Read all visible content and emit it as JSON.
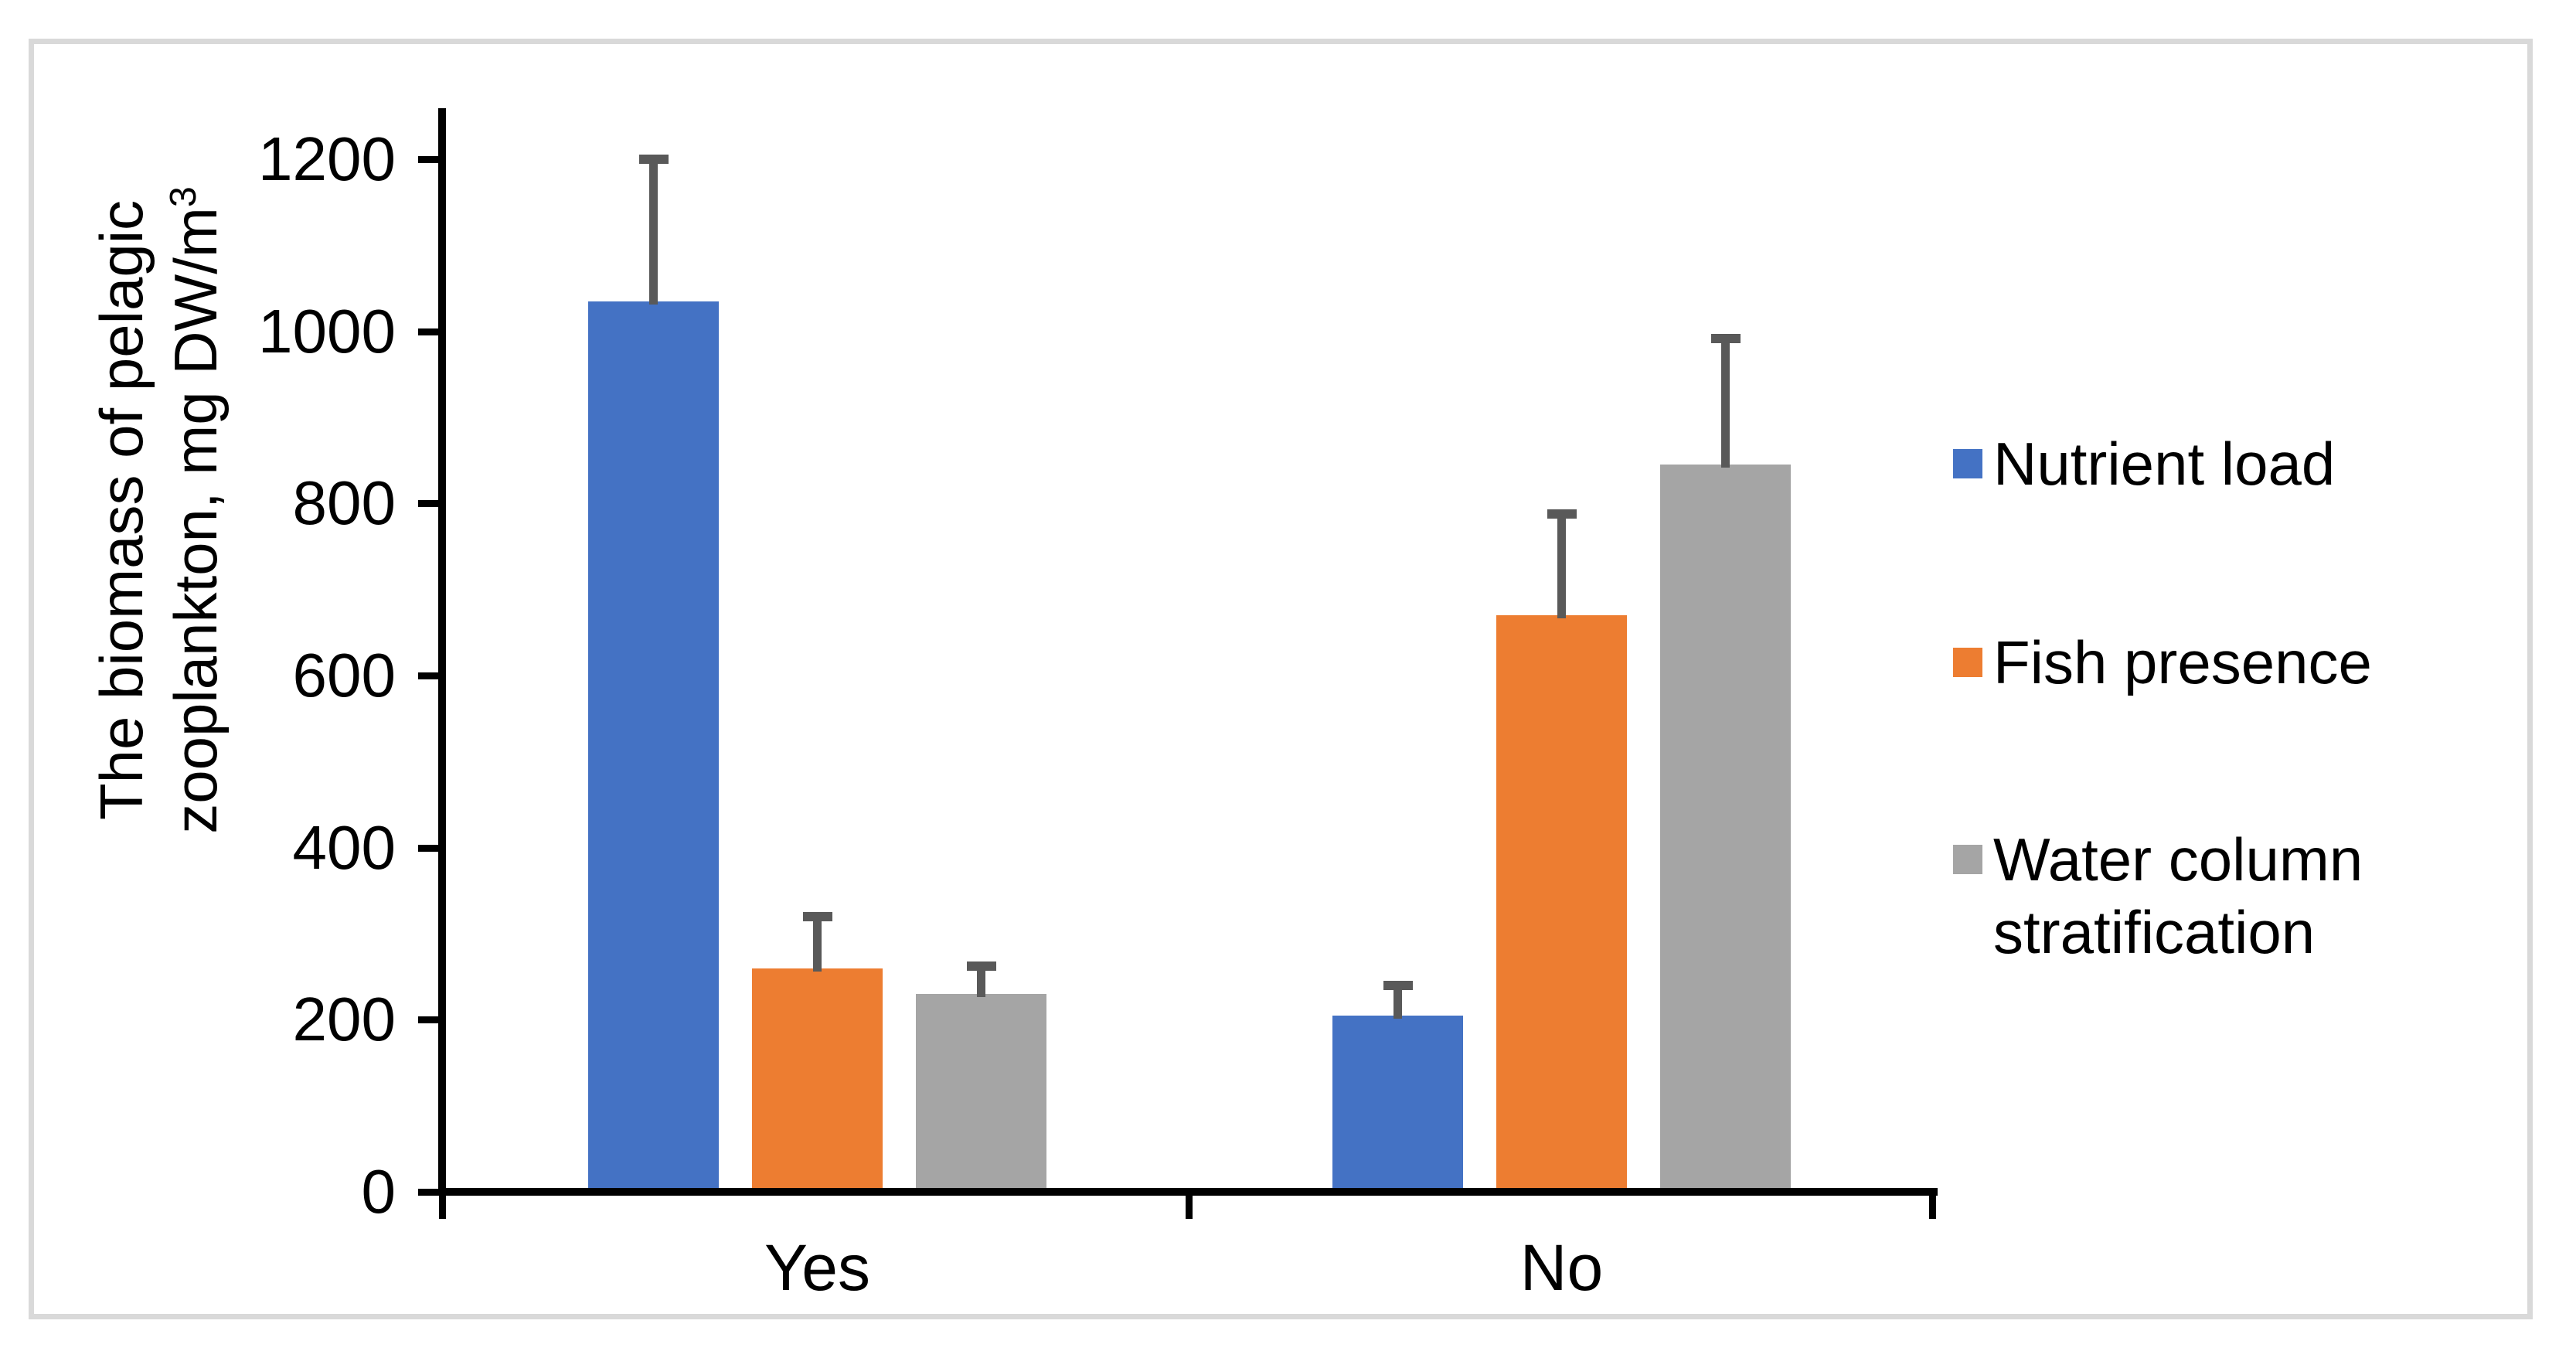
{
  "figure": {
    "border_color": "#D9D9D9",
    "background_color": "#FFFFFF",
    "axis_color": "#000000"
  },
  "chart_data": {
    "type": "bar",
    "title": "",
    "categories": [
      "Yes",
      "No"
    ],
    "series": [
      {
        "name": "Nutrient load",
        "color": "#4472C4",
        "values": [
          1035,
          205
        ],
        "error_plus": [
          165,
          35
        ]
      },
      {
        "name": "Fish presence",
        "color": "#ED7D31",
        "values": [
          260,
          670
        ],
        "error_plus": [
          60,
          118
        ]
      },
      {
        "name": "Water column stratification",
        "color": "#A5A5A5",
        "values": [
          230,
          845
        ],
        "error_plus": [
          32,
          147
        ]
      }
    ],
    "error_bar_color": "#595959",
    "ylabel": "The biomass of pelagic zooplankton, mg DW/m³",
    "ylabel_lines": [
      "The biomass of pelagic",
      "zooplankton, mg DW/m"
    ],
    "ylabel_superscript": "3",
    "xlabel": "",
    "yticks": [
      0,
      200,
      400,
      600,
      800,
      1000,
      1200
    ],
    "ylim": [
      0,
      1255
    ],
    "grid": false,
    "legend_position": "right"
  }
}
